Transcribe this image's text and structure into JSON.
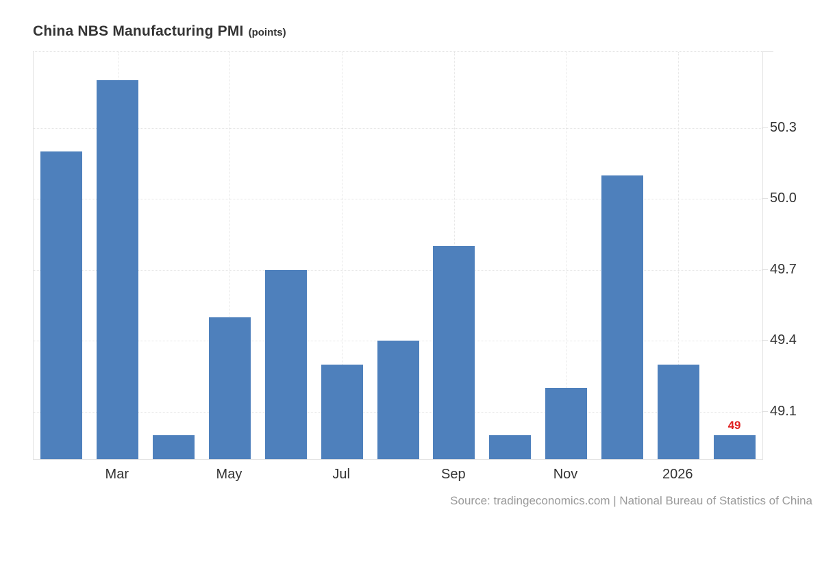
{
  "chart": {
    "title": "China NBS Manufacturing PMI",
    "units_label": "(points)",
    "source": "Source: tradingeconomics.com | National Bureau of Statistics of China"
  },
  "chart_data": {
    "type": "bar",
    "title": "China NBS Manufacturing PMI",
    "subtitle": "(points)",
    "ylabel": "points",
    "values": [
      50.2,
      50.5,
      49.0,
      49.5,
      49.7,
      49.3,
      49.4,
      49.8,
      49.0,
      49.2,
      50.1,
      49.3,
      49.0
    ],
    "x_ticks": [
      {
        "label": "Mar",
        "index": 1
      },
      {
        "label": "May",
        "index": 3
      },
      {
        "label": "Jul",
        "index": 5
      },
      {
        "label": "Sep",
        "index": 7
      },
      {
        "label": "Nov",
        "index": 9
      },
      {
        "label": "2026",
        "index": 11
      }
    ],
    "y_ticks": [
      50.3,
      50.0,
      49.7,
      49.4,
      49.1
    ],
    "ylim": [
      48.9,
      50.62
    ],
    "grid": true,
    "legend": false,
    "last_value_label": "49",
    "bar_color": "#4e80bc",
    "last_label_color": "#e02222",
    "source": "Source: tradingeconomics.com | National Bureau of Statistics of China"
  }
}
